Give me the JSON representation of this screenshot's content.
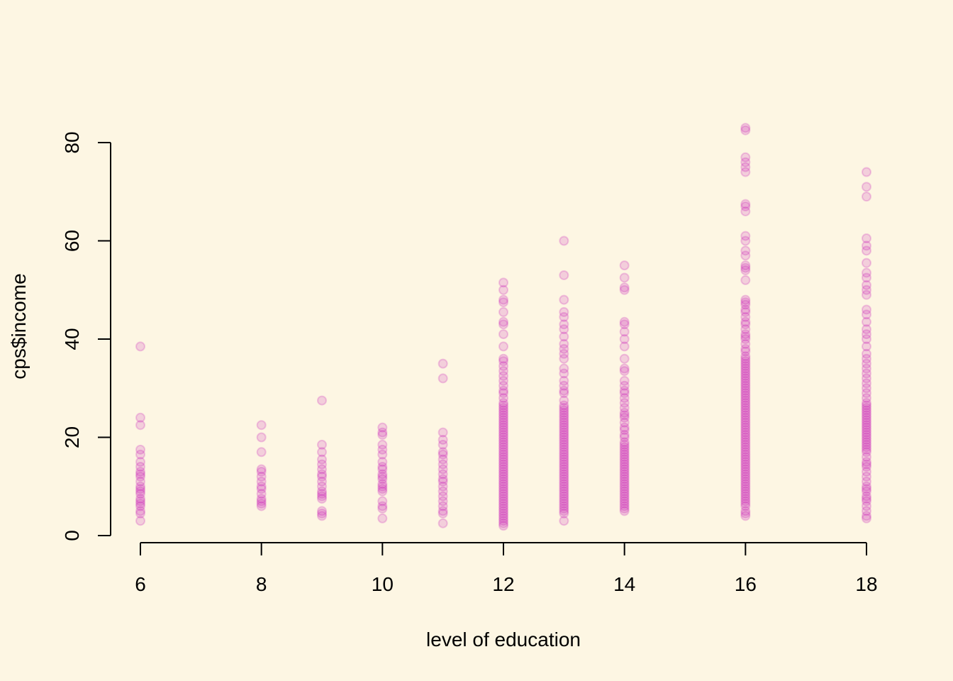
{
  "chart_data": {
    "type": "scatter",
    "title": "",
    "xlabel": "level of education",
    "ylabel": "cps$income",
    "xlim": [
      6,
      18
    ],
    "ylim": [
      0,
      80
    ],
    "x_ticks": [
      6,
      8,
      10,
      12,
      14,
      16,
      18
    ],
    "y_ticks": [
      0,
      20,
      40,
      60,
      80
    ],
    "grid": false,
    "legend": "none",
    "point_color": "#C71AB8",
    "background_color": "#FDF6E3",
    "series": [
      {
        "points": [
          {
            "x": 6,
            "y": [
              38.5,
              24.0,
              22.5,
              17.5,
              16.5,
              15.0,
              14.0,
              13.0,
              12.5,
              12.0,
              11.0,
              10.0,
              9.5,
              9.0,
              8.5,
              7.5,
              7.0,
              6.5,
              6.0,
              5.0,
              4.5,
              3.0
            ]
          },
          {
            "x": 8,
            "y": [
              22.5,
              20.0,
              17.0,
              13.5,
              13.0,
              12.0,
              11.0,
              10.0,
              9.5,
              8.5,
              7.5,
              7.0,
              6.5,
              6.0
            ]
          },
          {
            "x": 9,
            "y": [
              27.5,
              18.5,
              17.0,
              15.5,
              14.5,
              13.5,
              12.5,
              12.0,
              11.0,
              10.0,
              9.0,
              8.5,
              8.0,
              7.5,
              5.0,
              4.5,
              4.0
            ]
          },
          {
            "x": 10,
            "y": [
              22.0,
              21.0,
              20.5,
              18.5,
              17.5,
              16.5,
              15.0,
              14.0,
              13.5,
              12.5,
              12.0,
              11.5,
              10.5,
              10.0,
              9.5,
              9.0,
              7.0,
              6.0,
              5.5,
              3.5
            ]
          },
          {
            "x": 11,
            "y": [
              35.0,
              32.0,
              21.0,
              19.5,
              18.5,
              17.0,
              16.5,
              15.5,
              14.5,
              13.5,
              12.5,
              11.5,
              11.0,
              10.0,
              9.0,
              8.0,
              7.0,
              6.0,
              5.0,
              4.5,
              2.5
            ]
          },
          {
            "x": 12,
            "y": [
              51.5,
              50.0,
              48.0,
              47.5,
              45.5,
              43.5,
              43.0,
              41.0,
              38.5,
              36.0,
              35.5,
              34.5,
              33.5,
              32.5,
              31.5,
              30.5,
              29.5,
              29.0,
              28.0,
              27.0,
              26.5,
              26.0,
              25.5,
              25.0,
              24.5,
              24.0,
              23.5,
              23.0,
              22.5,
              22.0,
              21.5,
              21.0,
              20.5,
              20.0,
              19.5,
              19.0,
              18.5,
              18.0,
              17.5,
              17.0,
              16.5,
              16.0,
              15.5,
              15.0,
              14.5,
              14.0,
              13.5,
              13.0,
              12.5,
              12.0,
              11.5,
              11.0,
              10.5,
              10.0,
              9.5,
              9.0,
              8.5,
              8.0,
              7.5,
              7.0,
              6.5,
              6.0,
              5.5,
              5.0,
              4.5,
              4.0,
              3.5,
              3.0,
              2.5,
              2.0
            ]
          },
          {
            "x": 13,
            "y": [
              60.0,
              53.0,
              48.0,
              45.5,
              44.5,
              43.0,
              42.0,
              40.5,
              39.0,
              38.0,
              37.0,
              36.0,
              34.0,
              33.0,
              31.5,
              30.5,
              29.5,
              29.0,
              27.5,
              26.5,
              26.0,
              25.5,
              25.0,
              24.5,
              24.0,
              23.5,
              23.0,
              22.5,
              22.0,
              21.5,
              21.0,
              20.5,
              20.0,
              19.5,
              19.0,
              18.5,
              18.0,
              17.5,
              17.0,
              16.5,
              16.0,
              15.5,
              15.0,
              14.5,
              14.0,
              13.5,
              13.0,
              12.5,
              12.0,
              11.5,
              11.0,
              10.5,
              10.0,
              9.5,
              9.0,
              8.5,
              8.0,
              7.5,
              7.0,
              6.5,
              6.0,
              5.5,
              5.0,
              4.5,
              3.0
            ]
          },
          {
            "x": 14,
            "y": [
              55.0,
              52.5,
              50.5,
              50.0,
              43.5,
              43.0,
              41.5,
              40.0,
              38.5,
              36.0,
              34.0,
              33.5,
              31.5,
              30.5,
              29.5,
              29.0,
              28.0,
              27.0,
              26.0,
              25.0,
              24.5,
              24.0,
              23.0,
              22.0,
              21.5,
              20.5,
              20.0,
              19.0,
              18.5,
              18.0,
              17.5,
              17.0,
              16.5,
              16.0,
              15.5,
              15.0,
              14.5,
              14.0,
              13.5,
              13.0,
              12.5,
              12.0,
              11.5,
              11.0,
              10.5,
              10.0,
              9.5,
              9.0,
              8.5,
              8.0,
              7.5,
              7.0,
              6.5,
              6.0,
              5.5,
              5.0
            ]
          },
          {
            "x": 16,
            "y": [
              83.0,
              82.5,
              77.0,
              76.0,
              75.0,
              74.0,
              67.5,
              67.0,
              66.0,
              61.0,
              60.0,
              58.0,
              57.0,
              55.0,
              54.5,
              54.0,
              52.0,
              48.0,
              47.5,
              47.0,
              46.0,
              45.5,
              44.5,
              43.5,
              43.0,
              42.0,
              41.0,
              40.5,
              40.0,
              39.0,
              38.0,
              37.5,
              36.5,
              36.0,
              35.5,
              35.0,
              34.5,
              34.0,
              33.5,
              33.0,
              32.5,
              32.0,
              31.5,
              31.0,
              30.5,
              30.0,
              29.5,
              29.0,
              28.5,
              28.0,
              27.5,
              27.0,
              26.5,
              26.0,
              25.5,
              25.0,
              24.5,
              24.0,
              23.5,
              23.0,
              22.5,
              22.0,
              21.5,
              21.0,
              20.5,
              20.0,
              19.5,
              19.0,
              18.5,
              18.0,
              17.5,
              17.0,
              16.5,
              16.0,
              15.5,
              15.0,
              14.5,
              14.0,
              13.5,
              13.0,
              12.5,
              12.0,
              11.5,
              11.0,
              10.5,
              10.0,
              9.5,
              9.0,
              8.5,
              8.0,
              7.5,
              7.0,
              6.5,
              6.0,
              5.0,
              4.5,
              4.0
            ]
          },
          {
            "x": 18,
            "y": [
              74.0,
              71.0,
              69.0,
              60.5,
              59.0,
              58.0,
              55.5,
              53.5,
              52.5,
              51.0,
              50.0,
              49.0,
              46.0,
              45.0,
              43.5,
              42.0,
              41.0,
              40.0,
              38.5,
              37.0,
              36.0,
              35.0,
              34.0,
              33.0,
              32.0,
              31.0,
              30.0,
              29.0,
              28.0,
              27.0,
              26.5,
              26.0,
              25.5,
              25.0,
              24.5,
              24.0,
              23.5,
              23.0,
              22.5,
              22.0,
              21.5,
              21.0,
              20.5,
              20.0,
              19.5,
              19.0,
              18.5,
              18.0,
              17.5,
              17.0,
              16.0,
              15.0,
              14.5,
              14.0,
              13.0,
              12.0,
              11.0,
              10.0,
              9.5,
              9.0,
              8.0,
              7.5,
              7.0,
              6.0,
              5.0,
              4.0,
              3.5
            ]
          }
        ]
      }
    ]
  }
}
